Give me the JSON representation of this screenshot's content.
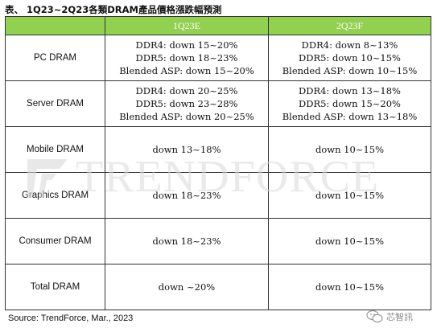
{
  "title": "表、 1Q23~2Q23各類DRAM產品價格漲跌幅預測",
  "columns": [
    "",
    "1Q23E",
    "2Q23F"
  ],
  "rows": [
    {
      "category": "PC DRAM",
      "q1": [
        "DDR4: down 15~20%",
        "DDR5: down 18~23%",
        "Blended ASP: down 15~20%"
      ],
      "q2": [
        "DDR4: down 8~13%",
        "DDR5: down 10~15%",
        "Blended ASP: down 10~15%"
      ]
    },
    {
      "category": "Server DRAM",
      "q1": [
        "DDR4: down 20~25%",
        "DDR5: down 23~28%",
        "Blended ASP: down 20~25%"
      ],
      "q2": [
        "DDR4: down 13~18%",
        "DDR5: down 15~20%",
        "Blended ASP: down 13~18%"
      ]
    },
    {
      "category": "Mobile DRAM",
      "q1": [
        "down 13~18%"
      ],
      "q2": [
        "down 10~15%"
      ]
    },
    {
      "category": "Graphics DRAM",
      "q1": [
        "down 18~23%"
      ],
      "q2": [
        "down 10~15%"
      ]
    },
    {
      "category": "Consumer DRAM",
      "q1": [
        "down 18~23%"
      ],
      "q2": [
        "down 10~15%"
      ]
    },
    {
      "category": "Total DRAM",
      "q1": [
        "down ~20%"
      ],
      "q2": [
        "down 10~15%"
      ]
    }
  ],
  "watermark": "TRENDFORCE",
  "source": "Source: TrendForce, Mar., 2023",
  "wechat_label": "芯智訊",
  "colors": {
    "header_bg": "#92d050",
    "header_text": "#ffffff",
    "border": "#333333",
    "watermark": "#d9d9d9"
  }
}
